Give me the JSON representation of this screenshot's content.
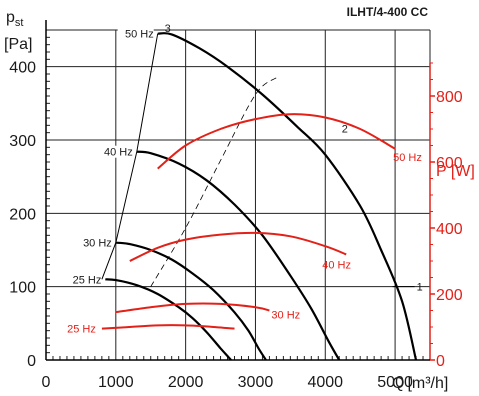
{
  "title": "ILHT/4-400 CC",
  "colors": {
    "pressure": "#000000",
    "power": "#e32119",
    "grid": "#222222"
  },
  "chart_data": {
    "type": "line",
    "title": "ILHT/4-400 CC",
    "xlabel": "Q [m³/h]",
    "x_unit_prefix": "Q",
    "x_unit": "[m³/h]",
    "ylabel_left_symbol": "p",
    "ylabel_left_subscript": "st",
    "ylabel_left_unit": "[Pa]",
    "ylabel_right": "P [W]",
    "xlim": [
      0,
      5500
    ],
    "ylim_left": [
      0,
      450
    ],
    "ylim_right": [
      0,
      1000
    ],
    "xticks": [
      0,
      1000,
      2000,
      3000,
      4000,
      5000
    ],
    "yticks_left": [
      0,
      100,
      200,
      300,
      400
    ],
    "yticks_right": [
      0,
      200,
      400,
      600,
      800
    ],
    "grid": true,
    "pressure_series": [
      {
        "name": "50 Hz",
        "x": [
          1600,
          1800,
          2200,
          2600,
          3100,
          3600,
          4000,
          4500,
          4800,
          5100,
          5300
        ],
        "y": [
          445,
          444,
          425,
          400,
          362,
          318,
          280,
          210,
          150,
          80,
          0
        ]
      },
      {
        "name": "40 Hz",
        "x": [
          1300,
          1500,
          1900,
          2300,
          2700,
          3100,
          3500,
          3800,
          4050,
          4200
        ],
        "y": [
          284,
          282,
          268,
          245,
          212,
          170,
          115,
          70,
          25,
          0
        ]
      },
      {
        "name": "30 Hz",
        "x": [
          1000,
          1200,
          1500,
          1800,
          2100,
          2400,
          2700,
          2900,
          3050,
          3150
        ],
        "y": [
          160,
          158,
          150,
          137,
          118,
          95,
          65,
          40,
          15,
          0
        ]
      },
      {
        "name": "25 Hz",
        "x": [
          850,
          1000,
          1300,
          1600,
          1900,
          2100,
          2300,
          2500,
          2650
        ],
        "y": [
          110,
          109,
          102,
          90,
          72,
          57,
          38,
          16,
          0
        ]
      }
    ],
    "power_series": [
      {
        "name": "50 Hz",
        "x": [
          1600,
          2000,
          2500,
          3000,
          3500,
          4000,
          4500,
          5000
        ],
        "y": [
          580,
          650,
          700,
          730,
          745,
          735,
          700,
          640
        ]
      },
      {
        "name": "40 Hz",
        "x": [
          1200,
          1600,
          2000,
          2500,
          3000,
          3500,
          4000,
          4300
        ],
        "y": [
          300,
          340,
          365,
          380,
          385,
          375,
          345,
          320
        ]
      },
      {
        "name": "30 Hz",
        "x": [
          1000,
          1500,
          2000,
          2500,
          3000,
          3200
        ],
        "y": [
          145,
          160,
          170,
          170,
          160,
          150
        ]
      },
      {
        "name": "25 Hz",
        "x": [
          800,
          1200,
          1600,
          2000,
          2400,
          2700
        ],
        "y": [
          95,
          100,
          105,
          105,
          100,
          95
        ]
      }
    ],
    "system_curve": {
      "x": [
        800,
        1000,
        1300,
        1600
      ],
      "y": [
        110,
        160,
        284,
        445
      ]
    },
    "parabola_dashed": {
      "x": [
        1500,
        2000,
        2500,
        3000,
        3300
      ],
      "y": [
        100,
        180,
        272,
        362,
        385
      ]
    },
    "annotations": {
      "pressure_labels": [
        "50 Hz",
        "40 Hz",
        "30 Hz",
        "25 Hz"
      ],
      "power_labels": [
        "50 Hz",
        "40 Hz",
        "30 Hz",
        "25 Hz"
      ],
      "point_labels": [
        {
          "text": "1",
          "x": 5050,
          "y": 100
        },
        {
          "text": "2",
          "x": 4150,
          "y": 310
        },
        {
          "text": "3",
          "x": 1800,
          "y": 450
        }
      ]
    }
  }
}
